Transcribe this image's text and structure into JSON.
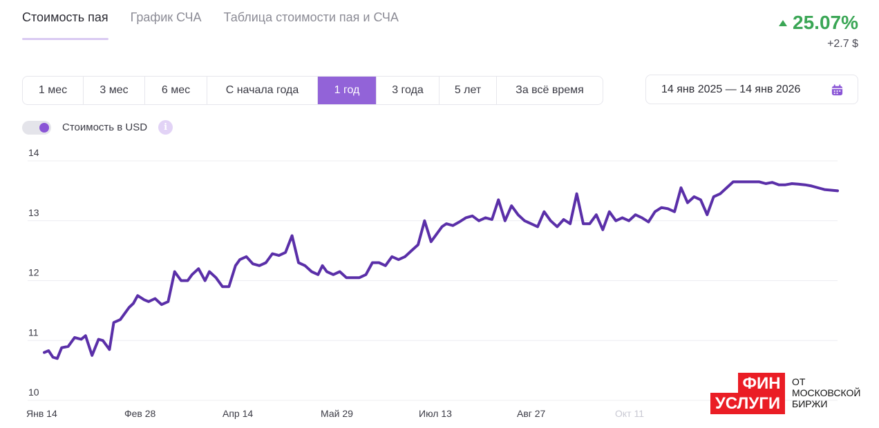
{
  "tabs": [
    {
      "label": "Стоимость пая",
      "active": true
    },
    {
      "label": "График СЧА",
      "active": false
    },
    {
      "label": "Таблица стоимости пая и СЧА",
      "active": false
    }
  ],
  "change": {
    "percent": "25.07%",
    "absolute": "+2.7 $",
    "color": "#3aa655",
    "icon": "triangle-up-icon"
  },
  "periods": [
    "1 мес",
    "3 мес",
    "6 мес",
    "С начала года",
    "1 год",
    "3 года",
    "5 лет",
    "За всё время"
  ],
  "active_period": "1 год",
  "date_range": {
    "label": "14 янв 2025 — 14 янв 2026",
    "icon": "calendar-icon"
  },
  "usd_toggle": {
    "label": "Стоимость в USD",
    "on": true,
    "info_icon": "info-icon",
    "info_symbol": "i"
  },
  "accent_color": "#9263d8",
  "line_color": "#5a2fa8",
  "chart_data": {
    "type": "line",
    "title": "",
    "xlabel": "",
    "ylabel": "",
    "ylim": [
      10,
      14
    ],
    "yticks": [
      "10",
      "11",
      "12",
      "13",
      "14"
    ],
    "xticks": [
      "Янв 14",
      "Фев 28",
      "Апр 14",
      "Май 29",
      "Июл 13",
      "Авг 27",
      "Окт 11"
    ],
    "faint_xticks": [
      "Окт 11"
    ],
    "grid": "horizontal",
    "x": [
      "2025-01-14",
      "2025-01-16",
      "2025-01-18",
      "2025-01-20",
      "2025-01-22",
      "2025-01-25",
      "2025-01-28",
      "2025-01-31",
      "2025-02-02",
      "2025-02-05",
      "2025-02-08",
      "2025-02-10",
      "2025-02-13",
      "2025-02-15",
      "2025-02-18",
      "2025-02-20",
      "2025-02-22",
      "2025-02-24",
      "2025-02-26",
      "2025-03-01",
      "2025-03-03",
      "2025-03-06",
      "2025-03-09",
      "2025-03-12",
      "2025-03-15",
      "2025-03-18",
      "2025-03-21",
      "2025-03-23",
      "2025-03-26",
      "2025-03-29",
      "2025-03-31",
      "2025-04-03",
      "2025-04-06",
      "2025-04-09",
      "2025-04-12",
      "2025-04-14",
      "2025-04-17",
      "2025-04-20",
      "2025-04-23",
      "2025-04-26",
      "2025-04-29",
      "2025-05-02",
      "2025-05-05",
      "2025-05-08",
      "2025-05-11",
      "2025-05-14",
      "2025-05-17",
      "2025-05-20",
      "2025-05-22",
      "2025-05-24",
      "2025-05-27",
      "2025-05-30",
      "2025-06-02",
      "2025-06-05",
      "2025-06-08",
      "2025-06-11",
      "2025-06-14",
      "2025-06-17",
      "2025-06-20",
      "2025-06-23",
      "2025-06-26",
      "2025-06-29",
      "2025-07-02",
      "2025-07-05",
      "2025-07-08",
      "2025-07-11",
      "2025-07-14",
      "2025-07-16",
      "2025-07-18",
      "2025-07-21",
      "2025-07-24",
      "2025-07-27",
      "2025-07-30",
      "2025-08-02",
      "2025-08-05",
      "2025-08-08",
      "2025-08-11",
      "2025-08-14",
      "2025-08-17",
      "2025-08-20",
      "2025-08-23",
      "2025-08-26",
      "2025-08-29",
      "2025-09-01",
      "2025-09-04",
      "2025-09-07",
      "2025-09-10",
      "2025-09-13",
      "2025-09-16",
      "2025-09-19",
      "2025-09-22",
      "2025-09-25",
      "2025-09-28",
      "2025-10-01",
      "2025-10-04",
      "2025-10-07",
      "2025-10-10",
      "2025-10-13",
      "2025-10-16",
      "2025-10-19",
      "2025-10-22",
      "2025-10-25",
      "2025-10-28",
      "2025-10-31",
      "2025-11-03",
      "2025-11-06",
      "2025-11-09",
      "2025-11-12",
      "2025-11-15",
      "2025-11-18",
      "2025-11-21",
      "2025-11-24",
      "2025-11-27",
      "2025-11-30",
      "2025-12-03",
      "2025-12-06",
      "2025-12-09",
      "2025-12-12",
      "2025-12-15",
      "2025-12-18",
      "2025-12-21",
      "2025-12-24",
      "2025-12-27",
      "2025-12-30",
      "2026-01-02",
      "2026-01-05",
      "2026-01-08",
      "2026-01-11",
      "2026-01-14"
    ],
    "series": [
      {
        "name": "",
        "values": [
          10.8,
          10.83,
          10.72,
          10.7,
          10.88,
          10.9,
          11.05,
          11.02,
          11.08,
          10.75,
          11.02,
          11.0,
          10.85,
          11.3,
          11.35,
          11.45,
          11.55,
          11.62,
          11.75,
          11.68,
          11.65,
          11.7,
          11.6,
          11.65,
          12.15,
          12.0,
          12.0,
          12.1,
          12.2,
          12.0,
          12.15,
          12.05,
          11.9,
          11.9,
          12.25,
          12.35,
          12.4,
          12.28,
          12.25,
          12.3,
          12.45,
          12.42,
          12.47,
          12.75,
          12.3,
          12.25,
          12.15,
          12.1,
          12.25,
          12.15,
          12.1,
          12.15,
          12.05,
          12.05,
          12.05,
          12.1,
          12.3,
          12.3,
          12.25,
          12.4,
          12.35,
          12.4,
          12.5,
          12.6,
          13.0,
          12.65,
          12.8,
          12.9,
          12.95,
          12.92,
          12.98,
          13.05,
          13.08,
          13.0,
          13.05,
          13.02,
          13.35,
          13.0,
          13.25,
          13.1,
          13.0,
          12.95,
          12.9,
          13.15,
          13.0,
          12.9,
          13.02,
          12.95,
          13.45,
          12.95,
          12.95,
          13.1,
          12.85,
          13.15,
          13.0,
          13.05,
          13.0,
          13.1,
          13.05,
          12.98,
          13.15,
          13.22,
          13.2,
          13.15,
          13.55,
          13.3,
          13.4,
          13.35,
          13.1,
          13.4,
          13.45,
          13.55,
          13.65,
          13.65,
          13.65,
          13.65,
          13.65,
          13.62,
          13.64,
          13.6,
          13.6,
          13.62,
          13.61,
          13.6,
          13.58,
          13.55,
          13.52,
          13.51,
          13.5
        ]
      }
    ]
  },
  "logo": {
    "line1": "ФИН",
    "line2": "УСЛУГИ",
    "caption_lines": [
      "ОТ",
      "МОСКОВСКОЙ",
      "БИРЖИ"
    ]
  }
}
